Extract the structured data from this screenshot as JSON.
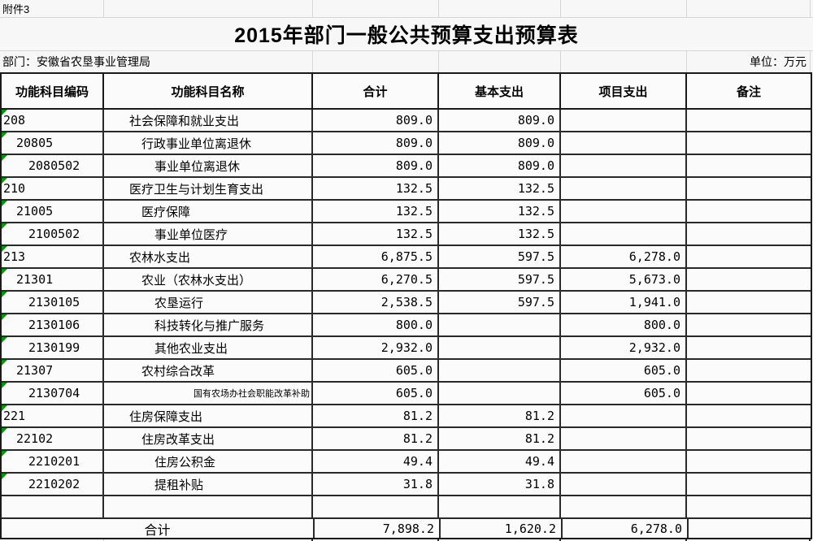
{
  "page": {
    "attachment_label": "附件3",
    "title": "2015年部门一般公共预算支出预算表",
    "department_label": "部门：安徽省农垦事业管理局",
    "unit_label": "单位：万元"
  },
  "colors": {
    "error_indicator_green": "#009900",
    "table_border": "#1a1a1a",
    "gridline_light": "#d6d6d6",
    "sheet_background": "#f7f7f7"
  },
  "table": {
    "headers": [
      "功能科目编码",
      "功能科目名称",
      "合计",
      "基本支出",
      "项目支出",
      "备注"
    ],
    "rows": [
      {
        "code": "208",
        "level": 0,
        "name": "社会保障和就业支出",
        "small": false,
        "indicator": true,
        "total": "809.0",
        "basic": "809.0",
        "project": "",
        "remark": ""
      },
      {
        "code": "20805",
        "level": 1,
        "name": "行政事业单位离退休",
        "small": false,
        "indicator": true,
        "total": "809.0",
        "basic": "809.0",
        "project": "",
        "remark": ""
      },
      {
        "code": "2080502",
        "level": 2,
        "name": "事业单位离退休",
        "small": false,
        "indicator": true,
        "total": "809.0",
        "basic": "809.0",
        "project": "",
        "remark": ""
      },
      {
        "code": "210",
        "level": 0,
        "name": "医疗卫生与计划生育支出",
        "small": false,
        "indicator": true,
        "total": "132.5",
        "basic": "132.5",
        "project": "",
        "remark": ""
      },
      {
        "code": "21005",
        "level": 1,
        "name": "医疗保障",
        "small": false,
        "indicator": true,
        "total": "132.5",
        "basic": "132.5",
        "project": "",
        "remark": ""
      },
      {
        "code": "2100502",
        "level": 2,
        "name": "事业单位医疗",
        "small": false,
        "indicator": true,
        "total": "132.5",
        "basic": "132.5",
        "project": "",
        "remark": ""
      },
      {
        "code": "213",
        "level": 0,
        "name": "农林水支出",
        "small": false,
        "indicator": true,
        "total": "6,875.5",
        "basic": "597.5",
        "project": "6,278.0",
        "remark": ""
      },
      {
        "code": "21301",
        "level": 1,
        "name": "农业（农林水支出）",
        "small": false,
        "indicator": true,
        "total": "6,270.5",
        "basic": "597.5",
        "project": "5,673.0",
        "remark": ""
      },
      {
        "code": "2130105",
        "level": 2,
        "name": "农垦运行",
        "small": false,
        "indicator": true,
        "total": "2,538.5",
        "basic": "597.5",
        "project": "1,941.0",
        "remark": ""
      },
      {
        "code": "2130106",
        "level": 2,
        "name": "科技转化与推广服务",
        "small": false,
        "indicator": true,
        "total": "800.0",
        "basic": "",
        "project": "800.0",
        "remark": ""
      },
      {
        "code": "2130199",
        "level": 2,
        "name": "其他农业支出",
        "small": false,
        "indicator": true,
        "total": "2,932.0",
        "basic": "",
        "project": "2,932.0",
        "remark": ""
      },
      {
        "code": "21307",
        "level": 1,
        "name": "农村综合改革",
        "small": false,
        "indicator": true,
        "total": "605.0",
        "basic": "",
        "project": "605.0",
        "remark": ""
      },
      {
        "code": "2130704",
        "level": 2,
        "name": "国有农场办社会职能改革补助",
        "small": true,
        "indicator": true,
        "total": "605.0",
        "basic": "",
        "project": "605.0",
        "remark": ""
      },
      {
        "code": "221",
        "level": 0,
        "name": "住房保障支出",
        "small": false,
        "indicator": true,
        "total": "81.2",
        "basic": "81.2",
        "project": "",
        "remark": ""
      },
      {
        "code": "22102",
        "level": 1,
        "name": "住房改革支出",
        "small": false,
        "indicator": true,
        "total": "81.2",
        "basic": "81.2",
        "project": "",
        "remark": ""
      },
      {
        "code": "2210201",
        "level": 2,
        "name": "住房公积金",
        "small": false,
        "indicator": true,
        "total": "49.4",
        "basic": "49.4",
        "project": "",
        "remark": ""
      },
      {
        "code": "2210202",
        "level": 2,
        "name": "提租补贴",
        "small": false,
        "indicator": true,
        "total": "31.8",
        "basic": "31.8",
        "project": "",
        "remark": ""
      },
      {
        "code": "",
        "level": 0,
        "name": "",
        "small": false,
        "indicator": false,
        "total": "",
        "basic": "",
        "project": "",
        "remark": ""
      }
    ],
    "total_row": {
      "label": "合计",
      "total": "7,898.2",
      "basic": "1,620.2",
      "project": "6,278.0",
      "remark": ""
    }
  }
}
